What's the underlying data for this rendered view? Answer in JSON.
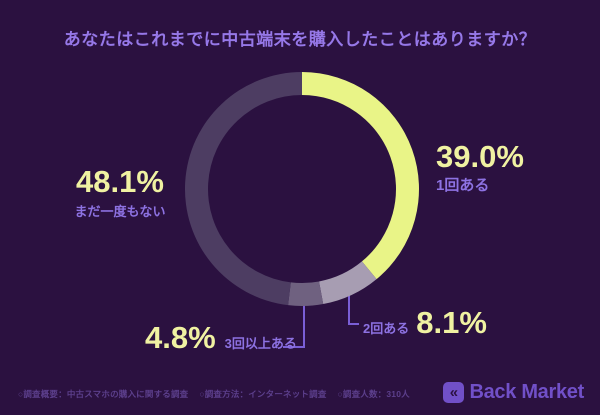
{
  "title": "あなたはこれまでに中古端末を購入したことはありますか？",
  "chart_data": {
    "type": "pie",
    "subtype": "donut",
    "title": "あなたはこれまでに中古端末を購入したことはありますか？",
    "start_angle_deg": 0,
    "direction": "clockwise",
    "unit": "%",
    "segments": [
      {
        "label": "1回ある",
        "value": 39.0,
        "display": "39.0%",
        "color": "#e9f487"
      },
      {
        "label": "2回ある",
        "value": 8.1,
        "display": "8.1%",
        "color": "#a79db2"
      },
      {
        "label": "3回以上ある",
        "value": 4.8,
        "display": "4.8%",
        "color": "#6f6180"
      },
      {
        "label": "まだ一度もない",
        "value": 48.1,
        "display": "48.1%",
        "color": "#4d3d62"
      }
    ],
    "legend_position": "around-chart"
  },
  "footer": {
    "items": [
      "○調査概要：中古スマホの購入に関する調査",
      "○調査方法：インターネット調査",
      "○調査人数：310人"
    ]
  },
  "logo": {
    "text": "Back Market",
    "icon": "double-chevron-left",
    "icon_glyph": "«"
  },
  "colors": {
    "background": "#2b1140",
    "title": "#9678e8",
    "percent_text": "#f0f2a2",
    "label_text": "#8d72e2",
    "leader_line": "#7a5fd6",
    "footer_text": "#5c3f8c",
    "logo": "#7150c8"
  }
}
